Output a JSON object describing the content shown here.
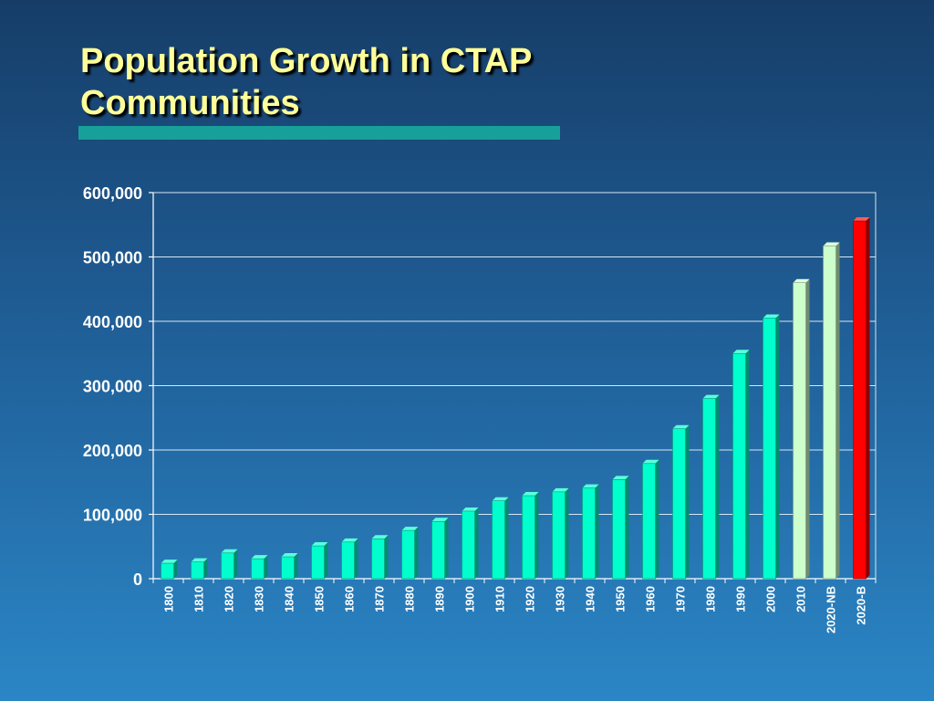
{
  "slide": {
    "title": "Population Growth in CTAP Communities",
    "accent_bar_color": "#17a09a"
  },
  "chart_data": {
    "type": "bar",
    "title": "",
    "xlabel": "",
    "ylabel": "",
    "ylim": [
      0,
      600000
    ],
    "yticks": [
      0,
      100000,
      200000,
      300000,
      400000,
      500000,
      600000
    ],
    "ytick_labels": [
      "0",
      "100,000",
      "200,000",
      "300,000",
      "400,000",
      "500,000",
      "600,000"
    ],
    "grid": true,
    "categories": [
      "1800",
      "1810",
      "1820",
      "1830",
      "1840",
      "1850",
      "1860",
      "1870",
      "1880",
      "1890",
      "1900",
      "1910",
      "1920",
      "1930",
      "1940",
      "1950",
      "1960",
      "1970",
      "1980",
      "1990",
      "2000",
      "2010",
      "2020-NB",
      "2020-B"
    ],
    "values": [
      24000,
      26000,
      40000,
      31000,
      34000,
      51000,
      57000,
      62000,
      75000,
      89000,
      105000,
      121000,
      129000,
      135000,
      141000,
      154000,
      179000,
      233000,
      280000,
      350000,
      405000,
      460000,
      517000,
      556000
    ],
    "bar_colors": [
      "#00ffcc",
      "#00ffcc",
      "#00ffcc",
      "#00ffcc",
      "#00ffcc",
      "#00ffcc",
      "#00ffcc",
      "#00ffcc",
      "#00ffcc",
      "#00ffcc",
      "#00ffcc",
      "#00ffcc",
      "#00ffcc",
      "#00ffcc",
      "#00ffcc",
      "#00ffcc",
      "#00ffcc",
      "#00ffcc",
      "#00ffcc",
      "#00ffcc",
      "#00ffcc",
      "#ccffcc",
      "#ccffcc",
      "#ff0000"
    ]
  }
}
